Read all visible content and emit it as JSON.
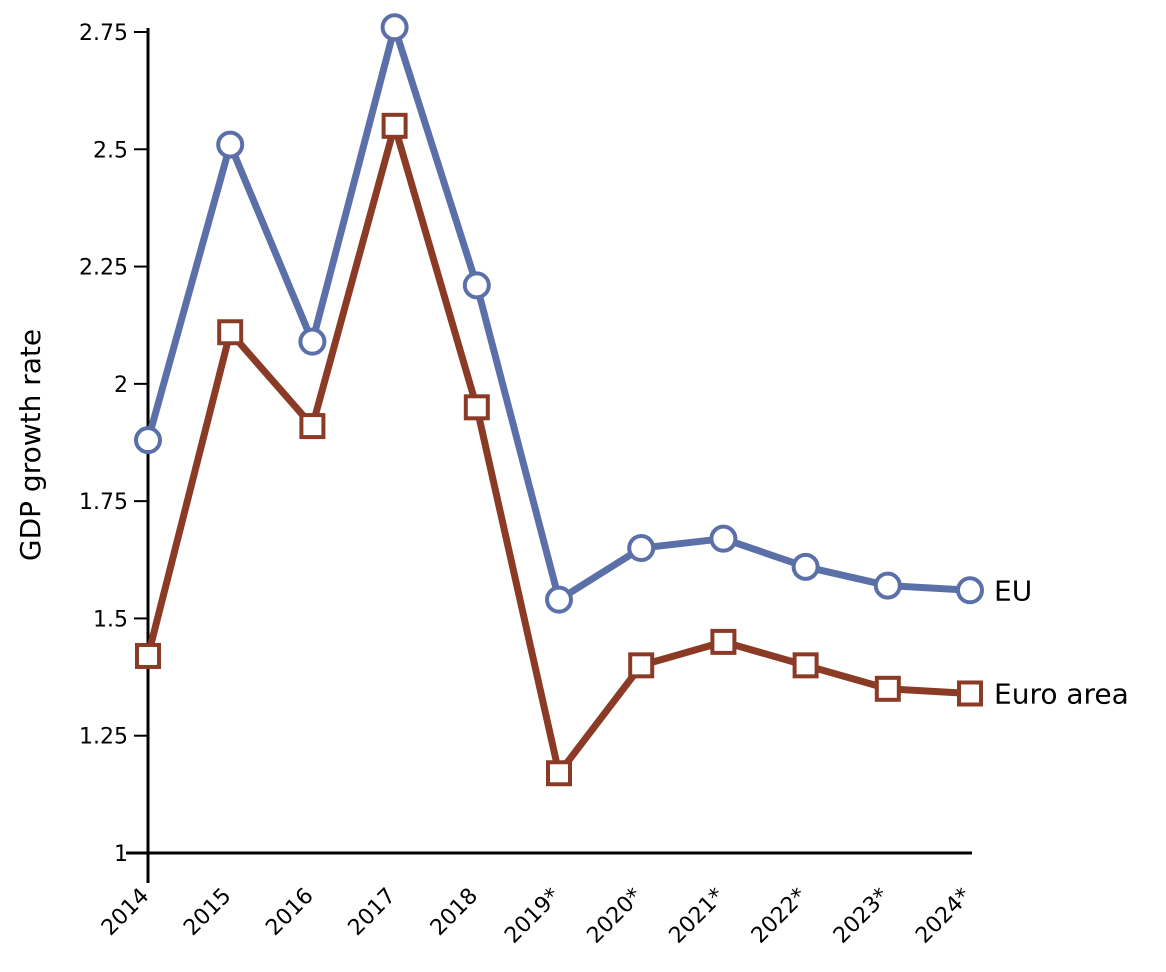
{
  "chart_data": {
    "type": "line",
    "title": "",
    "xlabel": "",
    "ylabel": "GDP growth rate",
    "categories": [
      "2014",
      "2015",
      "2016",
      "2017",
      "2018",
      "2019*",
      "2020*",
      "2021*",
      "2022*",
      "2023*",
      "2024*"
    ],
    "ylim": [
      1,
      2.75
    ],
    "yticks": [
      1,
      1.25,
      1.5,
      1.75,
      2,
      2.25,
      2.5,
      2.75
    ],
    "ytick_labels": [
      "1",
      "1.25",
      "1.5",
      "1.75",
      "2",
      "2.25",
      "2.5",
      "2.75"
    ],
    "grid": false,
    "legend": "inline labels at line ends (right)",
    "series": [
      {
        "name": "EU",
        "color": "#5b70a8",
        "marker": "circle",
        "values": [
          1.88,
          2.51,
          2.09,
          2.76,
          2.21,
          1.54,
          1.65,
          1.67,
          1.61,
          1.57,
          1.56
        ]
      },
      {
        "name": "Euro area",
        "color": "#8b3a26",
        "marker": "square",
        "values": [
          1.42,
          2.11,
          1.91,
          2.55,
          1.95,
          1.17,
          1.4,
          1.45,
          1.4,
          1.35,
          1.34
        ]
      }
    ]
  }
}
